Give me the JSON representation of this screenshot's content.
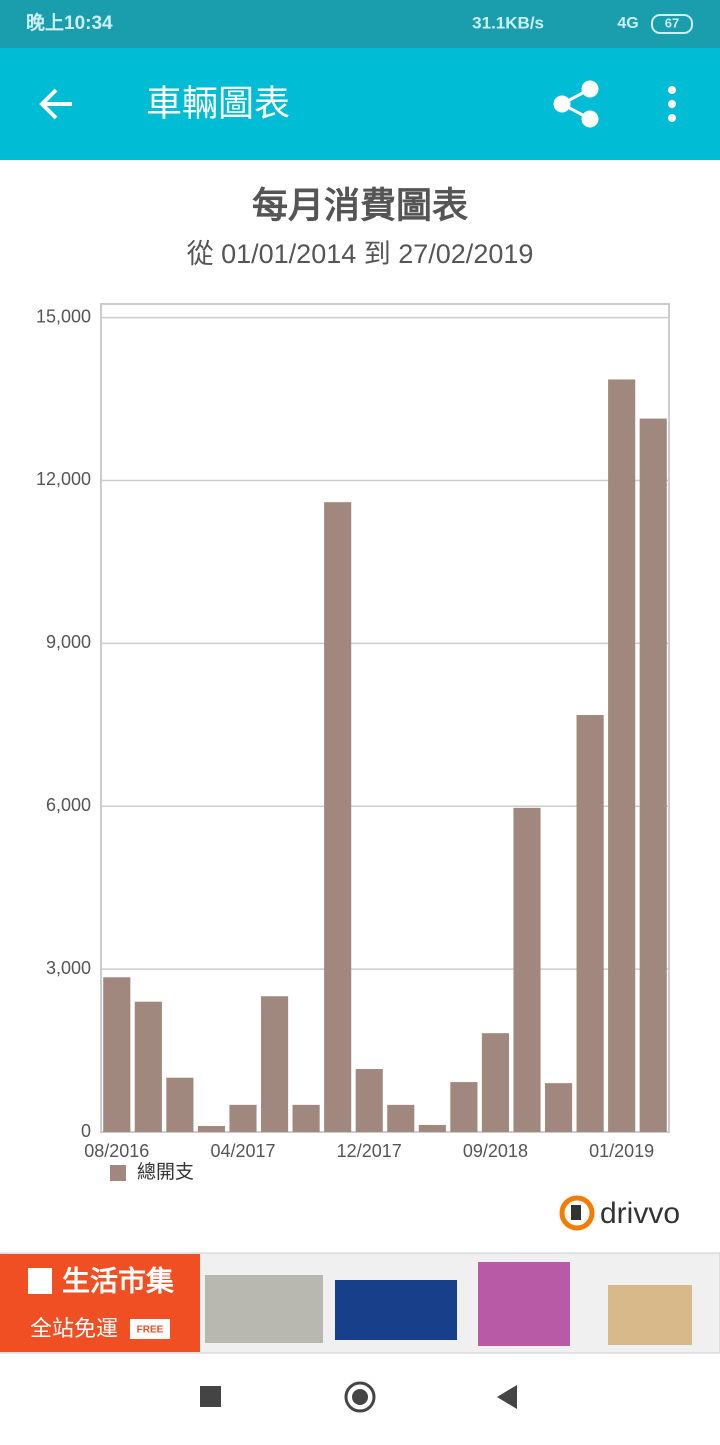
{
  "status_bar": {
    "time": "晚上10:34",
    "speed": "31.1KB/s",
    "network": "4G",
    "battery": "67"
  },
  "app_bar": {
    "title": "車輛圖表"
  },
  "chart_data": {
    "type": "bar",
    "title": "每月消費圖表",
    "subtitle": "從 01/01/2014 到 27/02/2019",
    "categories": [
      "08/2016",
      null,
      null,
      null,
      "04/2017",
      null,
      null,
      null,
      "12/2017",
      null,
      null,
      null,
      "09/2018",
      null,
      null,
      null,
      "01/2019",
      null
    ],
    "series": [
      {
        "name": "總開支",
        "color": "#a1887f",
        "values": [
          2850,
          2400,
          1000,
          110,
          500,
          2500,
          500,
          11600,
          1160,
          500,
          130,
          920,
          1820,
          5970,
          900,
          7680,
          13860,
          13140
        ]
      }
    ],
    "ylim": [
      0,
      15250
    ],
    "yticks": [
      0,
      {
        "value": 3000,
        "label": "3,000"
      },
      {
        "value": 6000,
        "label": "6,000"
      },
      {
        "value": 9000,
        "label": "9,000"
      },
      {
        "value": 12000,
        "label": "12,000"
      },
      {
        "value": 15000,
        "label": "15,000"
      }
    ],
    "grid": true,
    "legend": "bottom-left"
  },
  "brand": "drivvo",
  "ad": {
    "store": "生活市集",
    "slogan": "全站免運",
    "badge": "FREE"
  }
}
